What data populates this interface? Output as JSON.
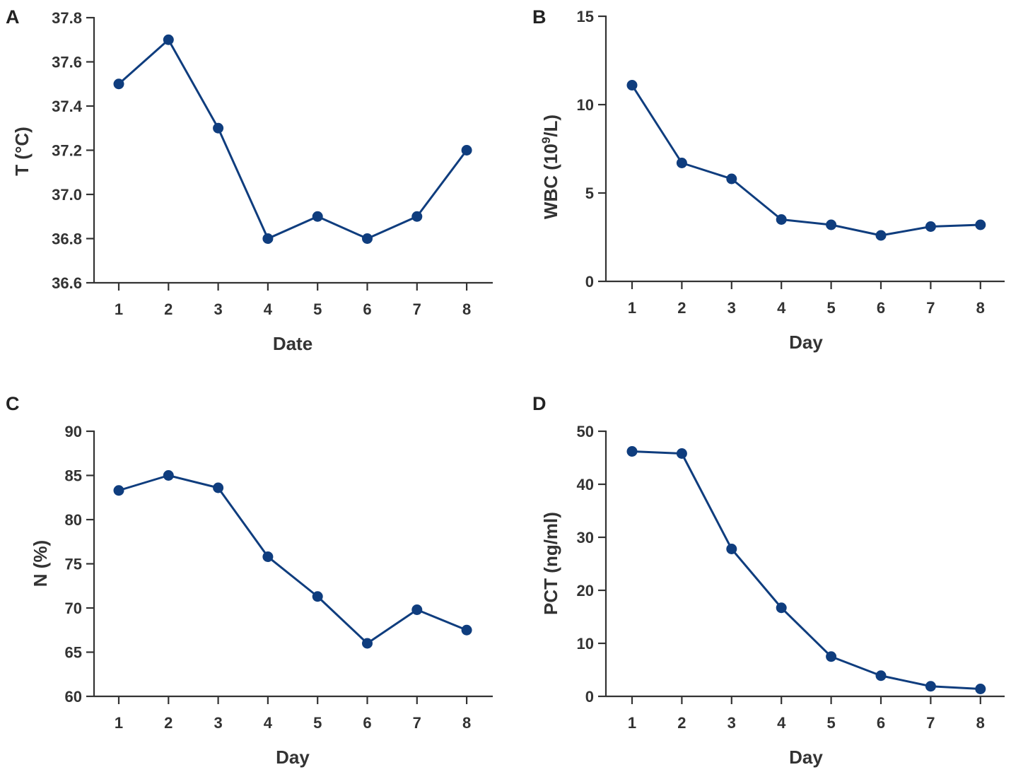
{
  "colors": {
    "series": "#0f3d7e",
    "axis": "#333333"
  },
  "chart_data": [
    {
      "panel": "A",
      "type": "line",
      "x": [
        1,
        2,
        3,
        4,
        5,
        6,
        7,
        8
      ],
      "x_tick_labels": [
        "1",
        "2",
        "3",
        "4",
        "5",
        "6",
        "7",
        "8"
      ],
      "values": [
        37.5,
        37.7,
        37.3,
        36.8,
        36.9,
        36.8,
        36.9,
        37.2
      ],
      "xlabel": "Date",
      "ylabel": "T (°C)",
      "ylim": [
        36.6,
        37.8
      ],
      "y_ticks": [
        36.6,
        36.8,
        37.0,
        37.2,
        37.4,
        37.6,
        37.8
      ],
      "y_tick_labels": [
        "36.6",
        "36.8",
        "37.0",
        "37.2",
        "37.4",
        "37.6",
        "37.8"
      ],
      "grid": false
    },
    {
      "panel": "B",
      "type": "line",
      "x": [
        1,
        2,
        3,
        4,
        5,
        6,
        7,
        8
      ],
      "x_tick_labels": [
        "1",
        "2",
        "3",
        "4",
        "5",
        "6",
        "7",
        "8"
      ],
      "values": [
        11.1,
        6.7,
        5.8,
        3.5,
        3.2,
        2.6,
        3.1,
        3.2
      ],
      "xlabel": "Day",
      "ylabel": "WBC (10⁹/L)",
      "ylabel_parts": {
        "before": "WBC (10",
        "sup": "9",
        "after": "/L)"
      },
      "ylim": [
        0,
        15
      ],
      "y_ticks": [
        0,
        5,
        10,
        15
      ],
      "y_tick_labels": [
        "0",
        "5",
        "10",
        "15"
      ],
      "grid": false
    },
    {
      "panel": "C",
      "type": "line",
      "x": [
        1,
        2,
        3,
        4,
        5,
        6,
        7,
        8
      ],
      "x_tick_labels": [
        "1",
        "2",
        "3",
        "4",
        "5",
        "6",
        "7",
        "8"
      ],
      "values": [
        83.3,
        85.0,
        83.6,
        75.8,
        71.3,
        66.0,
        69.8,
        67.5
      ],
      "xlabel": "Day",
      "ylabel": "N (%)",
      "ylim": [
        60,
        90
      ],
      "y_ticks": [
        60,
        65,
        70,
        75,
        80,
        85,
        90
      ],
      "y_tick_labels": [
        "60",
        "65",
        "70",
        "75",
        "80",
        "85",
        "90"
      ],
      "grid": false
    },
    {
      "panel": "D",
      "type": "line",
      "x": [
        1,
        2,
        3,
        4,
        5,
        6,
        7,
        8
      ],
      "x_tick_labels": [
        "1",
        "2",
        "3",
        "4",
        "5",
        "6",
        "7",
        "8"
      ],
      "values": [
        46.2,
        45.8,
        27.8,
        16.7,
        7.5,
        3.9,
        1.9,
        1.4
      ],
      "xlabel": "Day",
      "ylabel": "PCT (ng/ml)",
      "ylim": [
        0,
        50
      ],
      "y_ticks": [
        0,
        10,
        20,
        30,
        40,
        50
      ],
      "y_tick_labels": [
        "0",
        "10",
        "20",
        "30",
        "40",
        "50"
      ],
      "grid": false
    }
  ]
}
